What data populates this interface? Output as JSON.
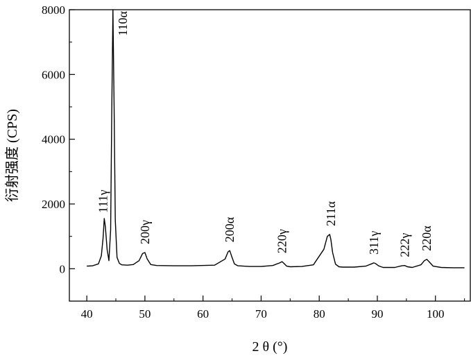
{
  "chart_data": {
    "type": "line",
    "xlabel": "2 θ (°)",
    "ylabel": "衍射强度 (CPS)",
    "xlim": [
      37,
      106
    ],
    "ylim": [
      -1000,
      8000
    ],
    "x_ticks": [
      40,
      50,
      60,
      70,
      80,
      90,
      100
    ],
    "y_ticks": [
      0,
      2000,
      4000,
      6000,
      8000
    ],
    "grid": false,
    "line_color": "#000000",
    "series": [
      {
        "x": [
          40,
          41,
          42,
          42.5,
          42.8,
          43.0,
          43.2,
          43.5,
          43.8,
          44.1,
          44.3,
          44.5,
          44.7,
          44.9,
          45.2,
          45.6,
          46,
          47,
          48,
          49,
          49.6,
          50.0,
          50.4,
          51,
          52,
          55,
          58,
          62,
          63.8,
          64.3,
          64.6,
          64.9,
          65.4,
          66,
          68,
          70,
          72,
          73.2,
          73.6,
          73.9,
          74.4,
          75,
          77,
          79,
          80.8,
          81.4,
          81.8,
          82.0,
          82.3,
          82.8,
          83.4,
          84,
          86,
          88,
          89.0,
          89.4,
          89.7,
          90.2,
          91,
          93,
          94.2,
          94.7,
          95.2,
          96,
          97.5,
          98.1,
          98.5,
          98.9,
          99.6,
          101,
          103,
          105
        ],
        "y": [
          80,
          90,
          150,
          400,
          950,
          1550,
          1300,
          600,
          250,
          1200,
          5000,
          8200,
          5000,
          1500,
          350,
          170,
          120,
          110,
          130,
          250,
          470,
          500,
          300,
          130,
          100,
          90,
          90,
          110,
          300,
          520,
          560,
          400,
          150,
          90,
          70,
          70,
          100,
          180,
          220,
          170,
          80,
          60,
          70,
          120,
          600,
          1000,
          1060,
          900,
          500,
          140,
          60,
          50,
          50,
          80,
          150,
          180,
          160,
          90,
          40,
          40,
          90,
          100,
          60,
          40,
          120,
          250,
          290,
          220,
          80,
          40,
          30,
          30
        ]
      }
    ],
    "annotations": [
      {
        "text": "111γ",
        "x": 43.0,
        "y": 1550
      },
      {
        "text": "110α",
        "x": 44.5,
        "y": 8200
      },
      {
        "text": "200γ",
        "x": 50.0,
        "y": 500
      },
      {
        "text": "200α",
        "x": 64.6,
        "y": 560
      },
      {
        "text": "220γ",
        "x": 73.6,
        "y": 220
      },
      {
        "text": "211α",
        "x": 82.0,
        "y": 1060
      },
      {
        "text": "311γ",
        "x": 89.4,
        "y": 180
      },
      {
        "text": "222γ",
        "x": 94.7,
        "y": 100
      },
      {
        "text": "220α",
        "x": 98.5,
        "y": 290
      }
    ]
  }
}
